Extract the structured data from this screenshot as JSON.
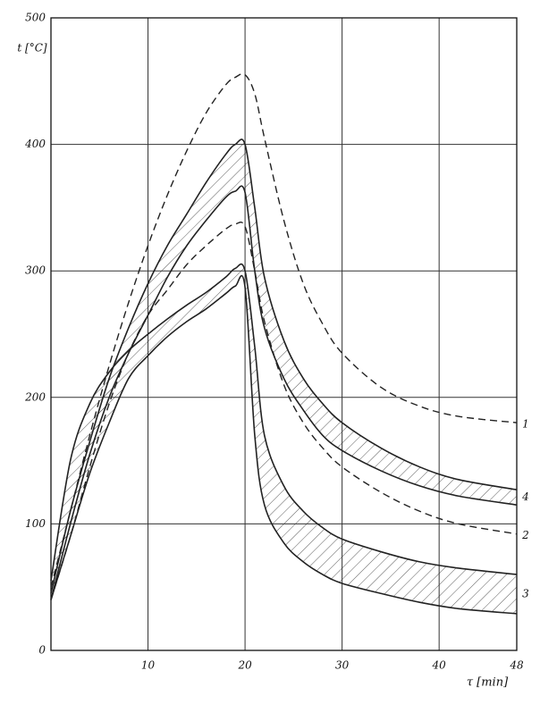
{
  "chart_data": {
    "type": "line",
    "y_label": "t [°C]",
    "x_label": "τ [min]",
    "xlim": [
      0,
      48
    ],
    "ylim": [
      0,
      500
    ],
    "xticks": [
      10,
      20,
      30,
      40,
      48
    ],
    "yticks": [
      0,
      100,
      200,
      300,
      400,
      500
    ],
    "grid": true,
    "x": [
      0,
      2,
      4,
      6,
      8,
      10,
      12,
      14,
      16,
      18,
      19,
      20,
      21,
      22,
      24,
      26,
      28,
      30,
      34,
      38,
      42,
      48
    ],
    "series": [
      {
        "name": "1",
        "style": "dashed",
        "color": "#222",
        "values": [
          50,
          110,
          170,
          225,
          275,
          320,
          360,
          395,
          425,
          447,
          453,
          455,
          440,
          405,
          340,
          290,
          258,
          235,
          208,
          193,
          185,
          180
        ]
      },
      {
        "name": "2",
        "style": "dashed",
        "color": "#222",
        "values": [
          40,
          90,
          145,
          195,
          235,
          265,
          285,
          305,
          320,
          333,
          337,
          335,
          300,
          260,
          210,
          180,
          160,
          145,
          125,
          110,
          100,
          92
        ]
      },
      {
        "name": "3",
        "style": "band",
        "color": "#222",
        "values": [
          55,
          150,
          195,
          220,
          237,
          250,
          262,
          273,
          283,
          295,
          302,
          300,
          240,
          170,
          130,
          110,
          97,
          88,
          78,
          70,
          65,
          60
        ],
        "lower": [
          40,
          90,
          140,
          180,
          215,
          233,
          248,
          260,
          270,
          282,
          288,
          287,
          170,
          115,
          85,
          70,
          60,
          53,
          45,
          38,
          33,
          29
        ]
      },
      {
        "name": "4",
        "style": "band",
        "color": "#222",
        "values": [
          45,
          110,
          165,
          215,
          255,
          290,
          320,
          345,
          370,
          392,
          400,
          400,
          350,
          295,
          245,
          215,
          195,
          180,
          160,
          145,
          135,
          127
        ],
        "lower": [
          40,
          100,
          155,
          200,
          235,
          265,
          295,
          320,
          340,
          358,
          363,
          362,
          300,
          255,
          215,
          190,
          170,
          158,
          142,
          130,
          122,
          115
        ]
      }
    ]
  }
}
